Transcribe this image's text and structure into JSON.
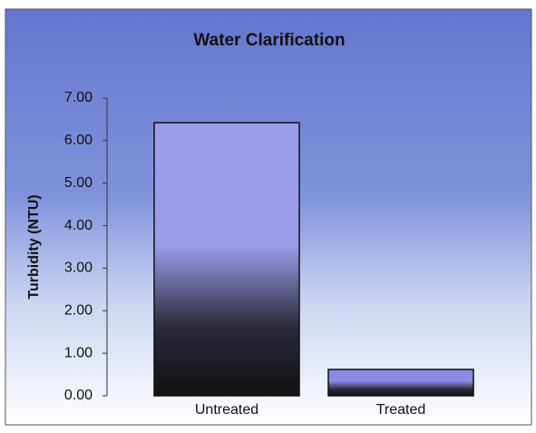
{
  "chart_data": {
    "type": "bar",
    "title": "Water Clarification",
    "y_label": "Turbidity (NTU)",
    "categories": [
      "Untreated",
      "Treated"
    ],
    "values": [
      6.42,
      0.62
    ],
    "colors": [
      "#9c9cec",
      "#8a8ae4"
    ],
    "ylim": [
      0,
      7
    ],
    "yticks": [
      {
        "value": 0,
        "label": "0.00"
      },
      {
        "value": 1,
        "label": "1.00"
      },
      {
        "value": 2,
        "label": "2.00"
      },
      {
        "value": 3,
        "label": "3.00"
      },
      {
        "value": 4,
        "label": "4.00"
      },
      {
        "value": 5,
        "label": "5.00"
      },
      {
        "value": 6,
        "label": "6.00"
      },
      {
        "value": 7,
        "label": "7.00"
      }
    ],
    "grid": false
  }
}
